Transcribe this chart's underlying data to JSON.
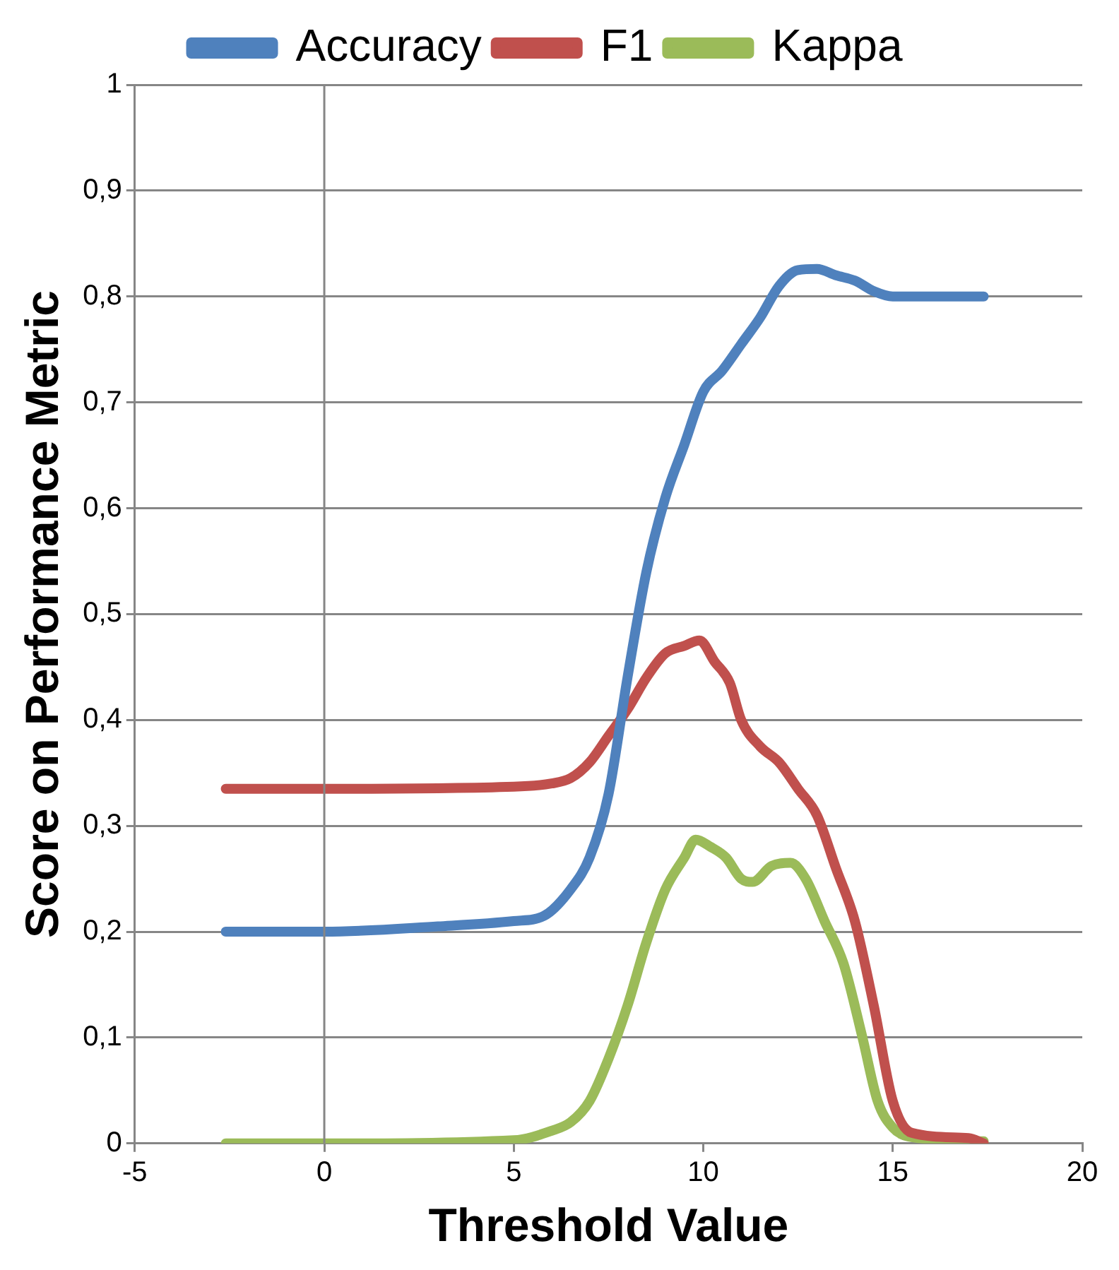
{
  "chart_data": {
    "type": "line",
    "xlabel": "Threshold Value",
    "ylabel": "Score on Performance Metric",
    "xlim": [
      -5,
      20
    ],
    "xticks": [
      -5,
      0,
      5,
      10,
      15,
      20
    ],
    "ylim": [
      0,
      1
    ],
    "yticks": [
      0,
      {
        "value": 0.1,
        "label": "0,1"
      },
      {
        "value": 0.2,
        "label": "0,2"
      },
      {
        "value": 0.3,
        "label": "0,3"
      },
      {
        "value": 0.4,
        "label": "0,4"
      },
      {
        "value": 0.5,
        "label": "0,5"
      },
      {
        "value": 0.6,
        "label": "0,6"
      },
      {
        "value": 0.7,
        "label": "0,7"
      },
      {
        "value": 0.8,
        "label": "0,8"
      },
      {
        "value": 0.9,
        "label": "0,9"
      },
      1
    ],
    "grid": "y",
    "legend": "top",
    "marker": "none",
    "line_style": "solid",
    "ref_lines": [
      {
        "axis": "x",
        "value": 0,
        "color": "#868686"
      }
    ],
    "series": [
      {
        "name": "Accuracy",
        "color": "#4f81bd",
        "x": [
          -2.6,
          0,
          3,
          5,
          5.8,
          6.5,
          7,
          7.5,
          8,
          8.5,
          9,
          9.5,
          10,
          10.5,
          11,
          11.5,
          12,
          12.5,
          13,
          13.5,
          14,
          14.5,
          15,
          16,
          17.4
        ],
        "values": [
          0.2,
          0.2,
          0.205,
          0.21,
          0.215,
          0.24,
          0.27,
          0.33,
          0.44,
          0.54,
          0.61,
          0.66,
          0.71,
          0.73,
          0.755,
          0.78,
          0.81,
          0.825,
          0.826,
          0.82,
          0.815,
          0.805,
          0.8,
          0.8,
          0.8
        ]
      },
      {
        "name": "F1",
        "color": "#c0504d",
        "x": [
          -2.6,
          0,
          5,
          6,
          6.5,
          7,
          7.5,
          8,
          8.5,
          9,
          9.5,
          9.9,
          10.3,
          10.7,
          11,
          11.5,
          12,
          12.5,
          13,
          13.5,
          14,
          14.5,
          15,
          15.5,
          17,
          17.4
        ],
        "values": [
          0.335,
          0.335,
          0.337,
          0.34,
          0.345,
          0.36,
          0.385,
          0.41,
          0.44,
          0.463,
          0.47,
          0.475,
          0.455,
          0.435,
          0.4,
          0.375,
          0.36,
          0.335,
          0.31,
          0.26,
          0.21,
          0.13,
          0.04,
          0.01,
          0.005,
          0
        ]
      },
      {
        "name": "Kappa",
        "color": "#9bbb59",
        "x": [
          -2.6,
          0,
          5,
          6,
          6.5,
          7,
          7.5,
          8,
          8.5,
          9,
          9.5,
          9.8,
          10.2,
          10.6,
          11,
          11.3,
          11.8,
          12.3,
          12.7,
          13.2,
          13.7,
          14.2,
          14.6,
          15,
          15.5,
          17.4
        ],
        "values": [
          0,
          0,
          0.003,
          0.012,
          0.02,
          0.04,
          0.08,
          0.13,
          0.19,
          0.24,
          0.27,
          0.287,
          0.28,
          0.27,
          0.25,
          0.247,
          0.262,
          0.265,
          0.25,
          0.21,
          0.17,
          0.1,
          0.04,
          0.015,
          0.006,
          0.002
        ]
      }
    ]
  }
}
